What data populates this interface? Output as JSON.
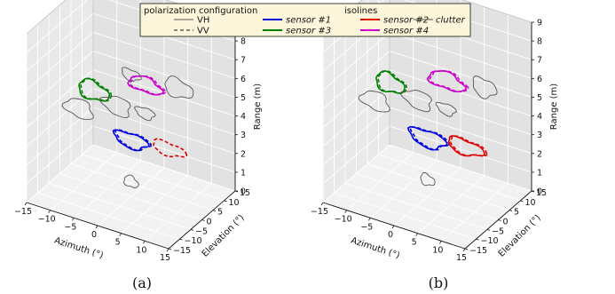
{
  "legend": {
    "polarization_title": "polarization configuration",
    "isolines_title": "isolines",
    "vh_label": "VH",
    "vv_label": "VV",
    "entries": [
      {
        "label": "sensor #1",
        "color": "#0000dd"
      },
      {
        "label": "sensor #2",
        "color": "#dd0000"
      },
      {
        "label": "clutter",
        "color": "#555555"
      },
      {
        "label": "sensor #3",
        "color": "#008000"
      },
      {
        "label": "sensor #4",
        "color": "#cc00cc"
      }
    ]
  },
  "chart_data": [
    {
      "type": "3d-isolines",
      "caption": "(a)",
      "xlabel": "Azimuth (°)",
      "ylabel": "Elevation (°)",
      "zlabel": "Range (m)",
      "xlim": [
        -15,
        15
      ],
      "ylim": [
        -15,
        15
      ],
      "zlim": [
        0,
        9
      ],
      "xticks": [
        "−15",
        "−10",
        "−5",
        "0",
        "5",
        "10",
        "15"
      ],
      "yticks": [
        "−15",
        "−10",
        "−5",
        "0",
        "5",
        "10",
        "15"
      ],
      "zticks": [
        "0",
        "1",
        "2",
        "3",
        "4",
        "5",
        "6",
        "7",
        "8",
        "9"
      ],
      "grid": true,
      "series": [
        {
          "name": "sensor #1",
          "color": "#0000dd",
          "center": [
            0,
            0,
            3.0
          ],
          "rx": 3.5,
          "rz": 0.4,
          "styles": [
            "solid",
            "dashed"
          ]
        },
        {
          "name": "sensor #2",
          "color": "#dd0000",
          "center": [
            8,
            0,
            3.2
          ],
          "rx": 3.5,
          "rz": 0.35,
          "styles": [
            "dashed"
          ]
        },
        {
          "name": "sensor #3",
          "color": "#008000",
          "center": [
            -8,
            0,
            5.0
          ],
          "rx": 3.2,
          "rz": 0.5,
          "styles": [
            "solid",
            "dashed"
          ]
        },
        {
          "name": "sensor #4",
          "color": "#cc00cc",
          "center": [
            3,
            0,
            6.2
          ],
          "rx": 3.5,
          "rz": 0.4,
          "styles": [
            "solid",
            "dashed"
          ]
        },
        {
          "name": "clutter",
          "color": "#555555",
          "center": [
            -11,
            0,
            3.8
          ],
          "rx": 3,
          "rz": 0.5,
          "styles": [
            "solid"
          ]
        },
        {
          "name": "clutter",
          "color": "#555555",
          "center": [
            -3,
            0,
            4.6
          ],
          "rx": 3,
          "rz": 0.5,
          "styles": [
            "solid"
          ]
        },
        {
          "name": "clutter",
          "color": "#555555",
          "center": [
            3,
            0,
            4.7
          ],
          "rx": 2,
          "rz": 0.3,
          "styles": [
            "solid"
          ]
        },
        {
          "name": "clutter",
          "color": "#555555",
          "center": [
            0,
            0,
            6.5
          ],
          "rx": 2,
          "rz": 0.3,
          "styles": [
            "solid"
          ]
        },
        {
          "name": "clutter",
          "color": "#555555",
          "center": [
            10,
            0,
            6.6
          ],
          "rx": 3,
          "rz": 0.5,
          "styles": [
            "solid"
          ]
        },
        {
          "name": "clutter",
          "color": "#555555",
          "center": [
            0,
            0,
            0.8
          ],
          "rx": 1.5,
          "rz": 0.3,
          "styles": [
            "solid"
          ]
        }
      ]
    },
    {
      "type": "3d-isolines",
      "caption": "(b)",
      "xlabel": "Azimuth (°)",
      "ylabel": "Elevation (°)",
      "zlabel": "Range (m)",
      "xlim": [
        -15,
        15
      ],
      "ylim": [
        -15,
        15
      ],
      "zlim": [
        0,
        9
      ],
      "xticks": [
        "−15",
        "−10",
        "−5",
        "0",
        "5",
        "10",
        "15"
      ],
      "yticks": [
        "−15",
        "−10",
        "−5",
        "0",
        "5",
        "10",
        "15"
      ],
      "zticks": [
        "0",
        "1",
        "2",
        "3",
        "4",
        "5",
        "6",
        "7",
        "8",
        "9"
      ],
      "grid": true,
      "series": [
        {
          "name": "sensor #1",
          "color": "#0000dd",
          "center": [
            0,
            0,
            3.1
          ],
          "rx": 3.8,
          "rz": 0.45,
          "styles": [
            "solid",
            "dashed"
          ]
        },
        {
          "name": "sensor #2",
          "color": "#dd0000",
          "center": [
            8,
            0,
            3.3
          ],
          "rx": 3.8,
          "rz": 0.4,
          "styles": [
            "solid",
            "dashed"
          ]
        },
        {
          "name": "sensor #3",
          "color": "#008000",
          "center": [
            -8,
            0,
            5.4
          ],
          "rx": 3.0,
          "rz": 0.5,
          "styles": [
            "solid",
            "dashed"
          ]
        },
        {
          "name": "sensor #4",
          "color": "#cc00cc",
          "center": [
            4,
            0,
            6.5
          ],
          "rx": 3.8,
          "rz": 0.45,
          "styles": [
            "solid",
            "dashed"
          ]
        },
        {
          "name": "clutter",
          "color": "#555555",
          "center": [
            -11,
            0,
            4.2
          ],
          "rx": 3,
          "rz": 0.5,
          "styles": [
            "solid"
          ]
        },
        {
          "name": "clutter",
          "color": "#555555",
          "center": [
            -2,
            0,
            5.0
          ],
          "rx": 3,
          "rz": 0.5,
          "styles": [
            "solid"
          ]
        },
        {
          "name": "clutter",
          "color": "#555555",
          "center": [
            4,
            0,
            5.0
          ],
          "rx": 2,
          "rz": 0.3,
          "styles": [
            "solid"
          ]
        },
        {
          "name": "clutter",
          "color": "#555555",
          "center": [
            12,
            0,
            6.8
          ],
          "rx": 2.5,
          "rz": 0.5,
          "styles": [
            "solid"
          ]
        },
        {
          "name": "clutter",
          "color": "#555555",
          "center": [
            0,
            0,
            0.9
          ],
          "rx": 1.5,
          "rz": 0.3,
          "styles": [
            "solid"
          ]
        }
      ]
    }
  ]
}
